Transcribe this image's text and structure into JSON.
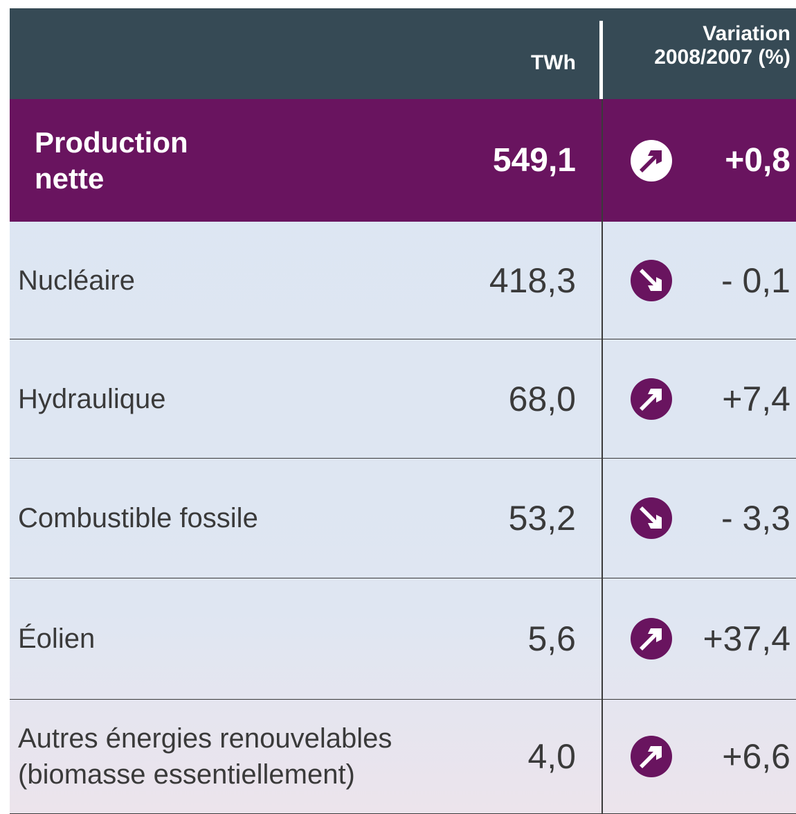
{
  "table": {
    "header": [
      "TWh",
      "Variation 2008/2007 (%)"
    ],
    "rows": [
      [
        "Production nette",
        "549,1",
        "+0,8"
      ],
      [
        "Nucléaire",
        "418,3",
        "- 0,1"
      ],
      [
        "Hydraulique",
        "68,0",
        "+7,4"
      ],
      [
        "Combustible fossile",
        "53,2",
        "- 3,3"
      ],
      [
        "Éolien",
        "5,6",
        "+37,4"
      ],
      [
        "Autres énergies renouvelables (biomasse essentiellement)",
        "4,0",
        "+6,6"
      ]
    ]
  }
}
